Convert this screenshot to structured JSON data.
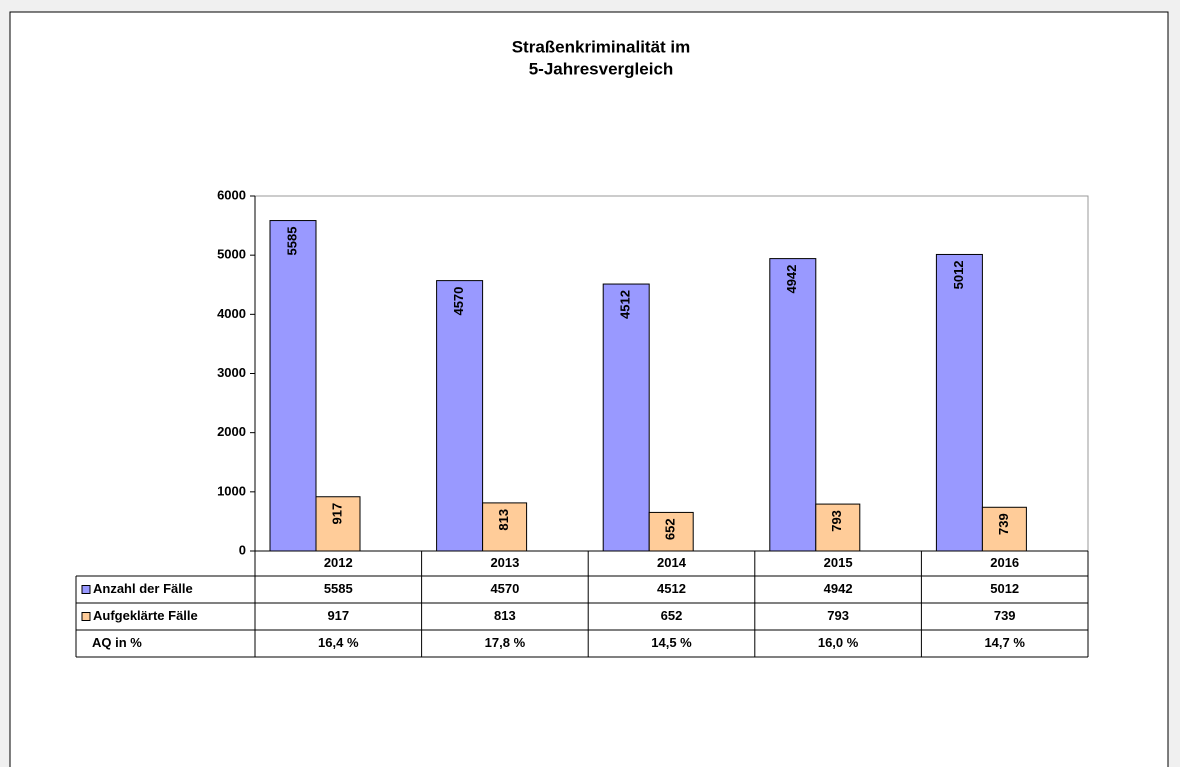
{
  "chart_data": {
    "type": "bar",
    "title": [
      "Straßenkriminalität im",
      "5-Jahresvergleich"
    ],
    "categories": [
      "2012",
      "2013",
      "2014",
      "2015",
      "2016"
    ],
    "series": [
      {
        "name": "Anzahl der Fälle",
        "color": "#9999ff",
        "values": [
          5585,
          4570,
          4512,
          4942,
          5012
        ]
      },
      {
        "name": "Aufgeklärte Fälle",
        "color": "#ffcc99",
        "values": [
          917,
          813,
          652,
          793,
          739
        ]
      }
    ],
    "table_extra_row": {
      "name": "AQ in %",
      "labels": [
        "16,4 %",
        "17,8 %",
        "14,5 %",
        "16,0 %",
        "14,7 %"
      ]
    },
    "ylim": [
      0,
      6000
    ],
    "yticks": [
      0,
      1000,
      2000,
      3000,
      4000,
      5000,
      6000
    ],
    "grid": false
  }
}
